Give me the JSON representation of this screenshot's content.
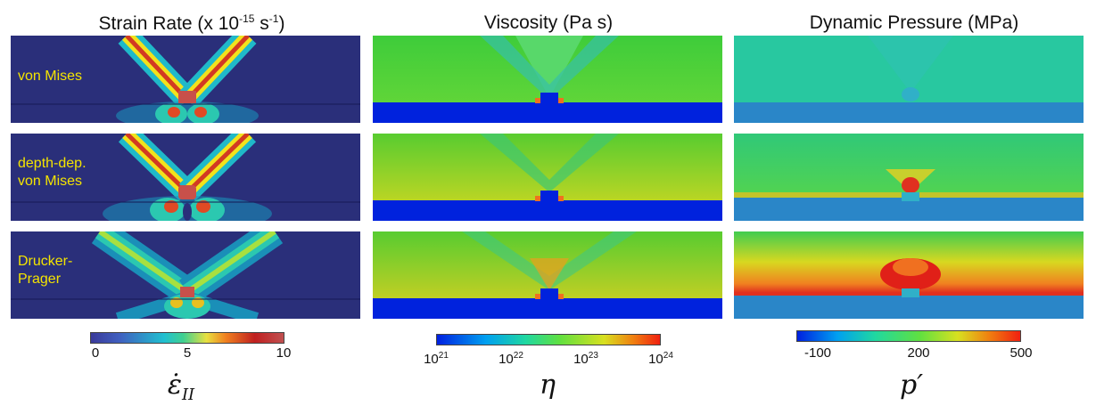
{
  "columns": [
    {
      "title_main": "Strain Rate (x 10",
      "title_exp1": "-15",
      "title_mid": " s",
      "title_exp2": "-1",
      "title_end": ")"
    },
    {
      "title": "Viscosity (Pa s)"
    },
    {
      "title": "Dynamic Pressure (MPa)"
    }
  ],
  "row_labels": [
    "von Mises",
    "depth-dep.\nvon Mises",
    "Drucker-\nPrager"
  ],
  "colorbars": {
    "strain": {
      "ticks": [
        "0",
        "5",
        "10"
      ],
      "symbol_main": "ε̇",
      "symbol_sub": "II"
    },
    "viscosity": {
      "tick_base": "10",
      "tick_exps": [
        "21",
        "22",
        "23",
        "24"
      ],
      "symbol": "η"
    },
    "pressure": {
      "ticks": [
        "-100",
        "200",
        "500"
      ],
      "symbol": "p′"
    }
  },
  "colors": {
    "strain_bg": "#2a2f7a",
    "visc_lower": "#0022dd",
    "press_lower": "#2a86c8"
  }
}
